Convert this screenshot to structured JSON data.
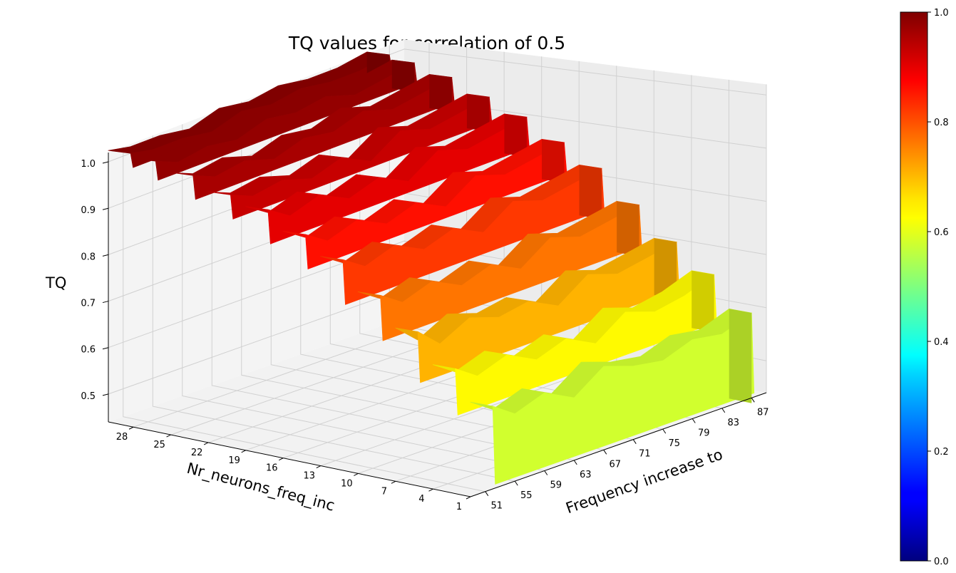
{
  "chart_data": {
    "type": "surface3d",
    "title": "TQ values for correlation of 0.5",
    "xlabel": "Frequency increase to",
    "ylabel": "Nr_neurons_freq_inc",
    "zlabel": "TQ",
    "x_ticks": [
      "51",
      "55",
      "59",
      "63",
      "67",
      "71",
      "75",
      "79",
      "83",
      "87"
    ],
    "y_ticks": [
      "1",
      "4",
      "7",
      "10",
      "13",
      "16",
      "19",
      "22",
      "25",
      "28"
    ],
    "z_ticks": [
      "0.5",
      "0.6",
      "0.7",
      "0.8",
      "0.9",
      "1.0"
    ],
    "xlim": [
      49,
      89
    ],
    "ylim": [
      1,
      30
    ],
    "zlim": [
      0.44,
      1.02
    ],
    "colormap": "jet",
    "colorbar": {
      "min": 0.0,
      "max": 1.0,
      "ticks": [
        "0.0",
        "0.2",
        "0.4",
        "0.6",
        "0.8",
        "1.0"
      ]
    },
    "grid": true,
    "bands": [
      {
        "n_neurons": 1,
        "tq": 0.58,
        "profile": [
          0.6,
          0.57,
          0.59,
          0.56,
          0.6,
          0.58,
          0.57,
          0.59,
          0.58,
          0.6
        ]
      },
      {
        "n_neurons": 4,
        "tq": 0.63,
        "profile": [
          0.66,
          0.63,
          0.65,
          0.62,
          0.64,
          0.61,
          0.65,
          0.63,
          0.64,
          0.66
        ]
      },
      {
        "n_neurons": 7,
        "tq": 0.7,
        "profile": [
          0.72,
          0.68,
          0.71,
          0.69,
          0.7,
          0.67,
          0.71,
          0.69,
          0.7,
          0.71
        ]
      },
      {
        "n_neurons": 10,
        "tq": 0.76,
        "profile": [
          0.78,
          0.75,
          0.77,
          0.74,
          0.76,
          0.73,
          0.77,
          0.75,
          0.76,
          0.77
        ]
      },
      {
        "n_neurons": 13,
        "tq": 0.82,
        "profile": [
          0.84,
          0.81,
          0.83,
          0.8,
          0.82,
          0.79,
          0.83,
          0.81,
          0.82,
          0.83
        ]
      },
      {
        "n_neurons": 16,
        "tq": 0.86,
        "profile": [
          0.88,
          0.85,
          0.87,
          0.84,
          0.86,
          0.83,
          0.87,
          0.85,
          0.86,
          0.87
        ]
      },
      {
        "n_neurons": 19,
        "tq": 0.9,
        "profile": [
          0.92,
          0.89,
          0.91,
          0.88,
          0.9,
          0.87,
          0.91,
          0.89,
          0.9,
          0.91
        ]
      },
      {
        "n_neurons": 22,
        "tq": 0.93,
        "profile": [
          0.94,
          0.92,
          0.93,
          0.91,
          0.93,
          0.9,
          0.94,
          0.92,
          0.93,
          0.94
        ]
      },
      {
        "n_neurons": 25,
        "tq": 0.96,
        "profile": [
          0.97,
          0.95,
          0.96,
          0.94,
          0.96,
          0.95,
          0.97,
          0.95,
          0.96,
          0.97
        ]
      },
      {
        "n_neurons": 28,
        "tq": 0.98,
        "profile": [
          0.99,
          0.97,
          0.98,
          0.97,
          0.99,
          0.98,
          0.99,
          0.97,
          0.98,
          0.99
        ]
      },
      {
        "n_neurons": 30,
        "tq": 0.99,
        "profile": [
          1.0,
          0.99,
          0.99,
          0.98,
          1.0,
          0.99,
          1.0,
          0.99,
          0.99,
          1.0
        ]
      }
    ]
  }
}
